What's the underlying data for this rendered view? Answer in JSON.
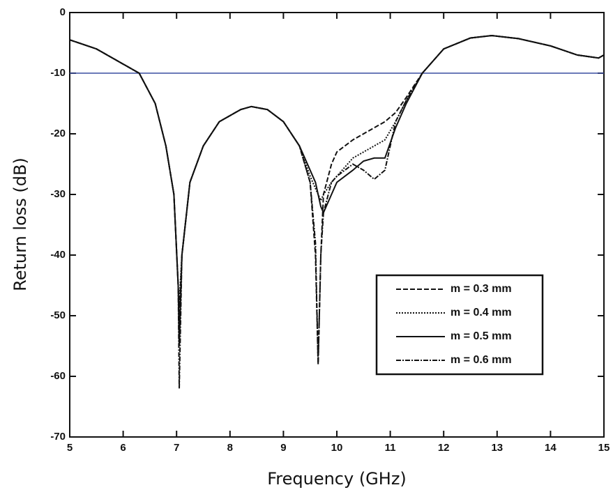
{
  "chart_data": {
    "type": "line",
    "x_label": "Frequency (GHz)",
    "y_label": "Return loss (dB)",
    "x": [
      5,
      5.5,
      6,
      6.3,
      6.6,
      6.8,
      6.95,
      7.03,
      7.05,
      7.1,
      7.25,
      7.5,
      7.8,
      8.2,
      8.4,
      8.7,
      9.0,
      9.3,
      9.5,
      9.6,
      9.65,
      9.7,
      9.75,
      9.9,
      10.0,
      10.3,
      10.5,
      10.7,
      10.9,
      11.1,
      11.3,
      11.6,
      12,
      12.5,
      12.9,
      13.4,
      14,
      14.5,
      14.9,
      15
    ],
    "series": [
      {
        "name": "m = 0.3 mm",
        "color": "#111111",
        "dash": "7,3",
        "values": [
          -4.5,
          -6,
          -8.5,
          -10,
          -15,
          -22,
          -30,
          -45,
          -50,
          -40,
          -28,
          -22,
          -18,
          -16,
          -15.5,
          -16,
          -18,
          -22,
          -28,
          -40,
          -58,
          -40,
          -30,
          -25,
          -23,
          -21,
          -20,
          -19,
          -18,
          -16.5,
          -14,
          -10,
          -6,
          -4.2,
          -3.8,
          -4.3,
          -5.5,
          -7,
          -7.5,
          -7
        ]
      },
      {
        "name": "m = 0.4 mm",
        "color": "#111111",
        "dash": "2,2",
        "values": [
          -4.5,
          -6,
          -8.5,
          -10,
          -15,
          -22,
          -30,
          -45,
          -48,
          -40,
          -28,
          -22,
          -18,
          -16,
          -15.5,
          -16,
          -18,
          -22,
          -27,
          -29,
          -30,
          -31,
          -30,
          -28,
          -27,
          -24,
          -23,
          -22,
          -21,
          -18,
          -14.5,
          -10,
          -6,
          -4.2,
          -3.8,
          -4.3,
          -5.5,
          -7,
          -7.5,
          -7
        ]
      },
      {
        "name": "m = 0.5 mm",
        "color": "#111111",
        "dash": "none",
        "values": [
          -4.5,
          -6,
          -8.5,
          -10,
          -15,
          -22,
          -30,
          -45,
          -55,
          -40,
          -28,
          -22,
          -18,
          -16,
          -15.5,
          -16,
          -18,
          -22,
          -26,
          -28,
          -30,
          -32,
          -33,
          -30,
          -28,
          -26,
          -24.5,
          -24,
          -24,
          -19,
          -15,
          -10,
          -6,
          -4.2,
          -3.8,
          -4.3,
          -5.5,
          -7,
          -7.5,
          -7
        ]
      },
      {
        "name": "m = 0.6 mm",
        "color": "#111111",
        "dash": "7,2,2,2",
        "values": [
          -4.5,
          -6,
          -8.5,
          -10,
          -15,
          -22,
          -30,
          -45,
          -62,
          -40,
          -28,
          -22,
          -18,
          -16,
          -15.5,
          -16,
          -18,
          -22,
          -28,
          -38,
          -58,
          -40,
          -33,
          -28,
          -27,
          -25,
          -26,
          -27.5,
          -26,
          -18,
          -14.5,
          -10,
          -6,
          -4.2,
          -3.8,
          -4.3,
          -5.5,
          -7,
          -7.5,
          -7
        ]
      }
    ],
    "reference_line": {
      "value": -10,
      "color": "#3a4fa0"
    },
    "xlim": [
      5,
      15
    ],
    "xticks": [
      5,
      6,
      7,
      8,
      9,
      10,
      11,
      12,
      13,
      14,
      15
    ],
    "ylim": [
      -70,
      0
    ],
    "yticks": [
      -70,
      -60,
      -50,
      -40,
      -30,
      -20,
      -10,
      0
    ],
    "grid": false,
    "legend": "lower right"
  }
}
